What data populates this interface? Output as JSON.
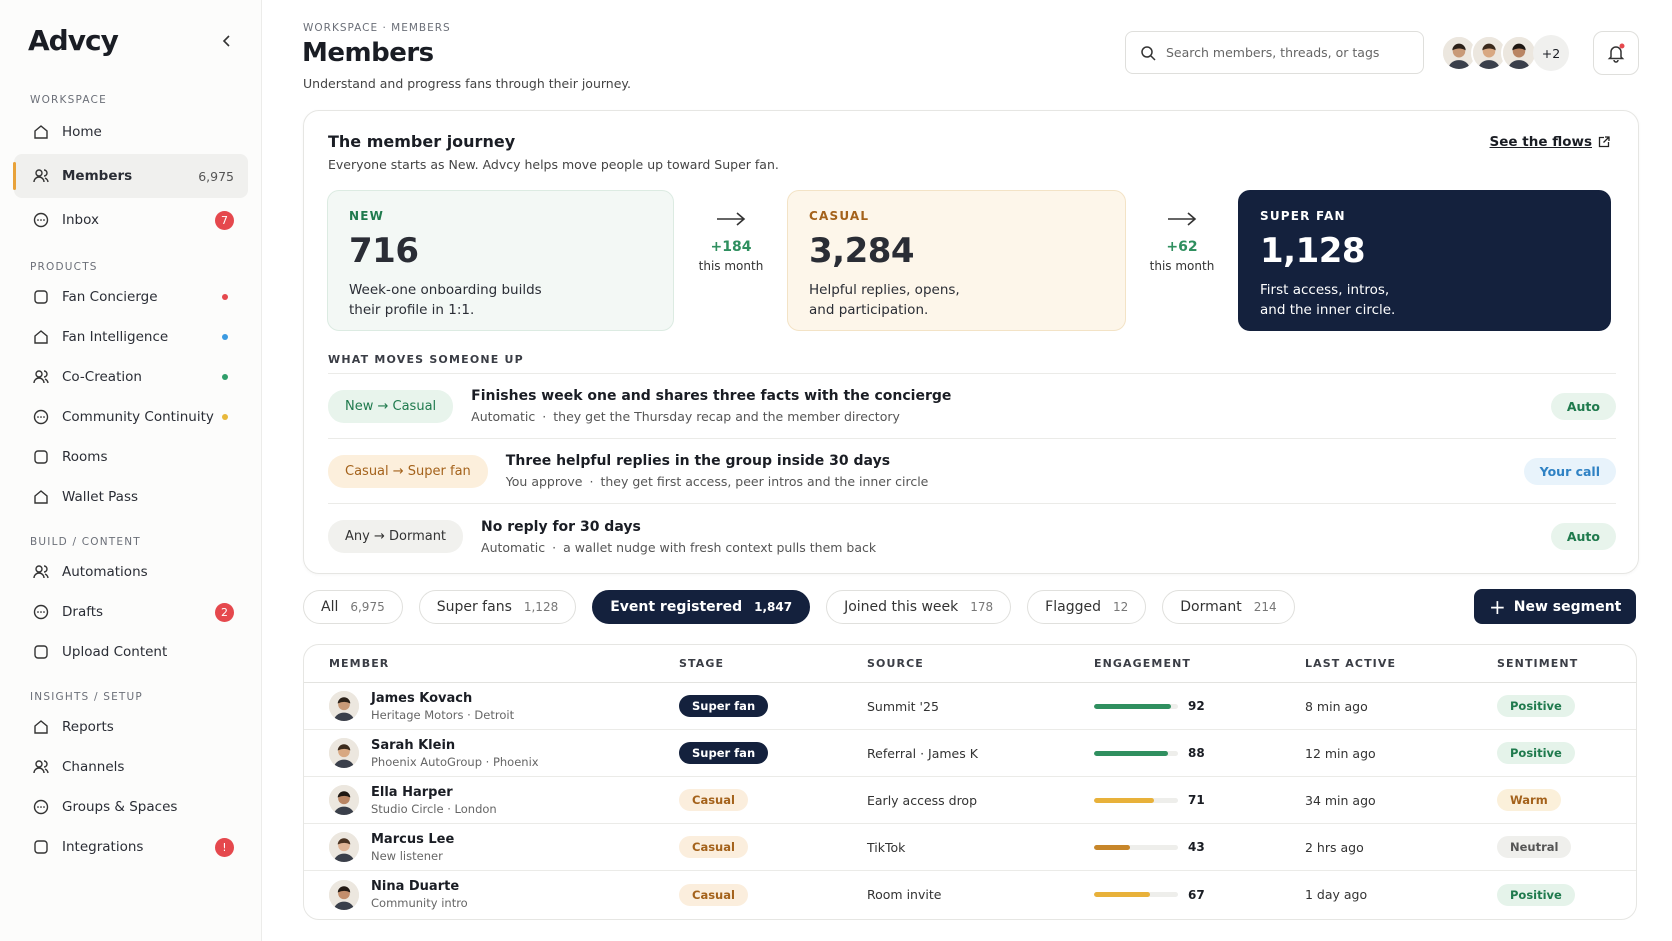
{
  "sidebar": {
    "logo": "Advcy",
    "sections": [
      {
        "title": "WORKSPACE",
        "items": [
          {
            "label": "Home"
          },
          {
            "label": "Members",
            "count": "6,975",
            "selected": true
          },
          {
            "label": "Inbox",
            "badge": "7"
          }
        ]
      },
      {
        "title": "PRODUCTS",
        "items": [
          {
            "label": "Fan Concierge",
            "dot": "#e5484d"
          },
          {
            "label": "Fan Intelligence",
            "dot": "#3b9ae1"
          },
          {
            "label": "Co-Creation",
            "dot": "#2f9e6a"
          },
          {
            "label": "Community Continuity",
            "dot": "#e8b83a"
          },
          {
            "label": "Rooms"
          },
          {
            "label": "Wallet Pass"
          }
        ]
      },
      {
        "title": "BUILD / CONTENT",
        "items": [
          {
            "label": "Automations"
          },
          {
            "label": "Drafts",
            "badge": "2"
          },
          {
            "label": "Upload Content"
          }
        ]
      },
      {
        "title": "INSIGHTS / SETUP",
        "items": [
          {
            "label": "Reports"
          },
          {
            "label": "Channels"
          },
          {
            "label": "Groups & Spaces"
          },
          {
            "label": "Integrations",
            "badge": "!"
          }
        ]
      }
    ]
  },
  "header": {
    "breadcrumb": "WORKSPACE · MEMBERS",
    "title": "Members",
    "subtitle": "Understand and progress fans through their journey.",
    "search_placeholder": "Search members, threads, or tags",
    "avatar_more": "+2"
  },
  "journey": {
    "title": "The member journey",
    "subtitle": "Everyone starts as New. Advcy helps move people up toward Super fan.",
    "link": "See the flows",
    "stages": [
      {
        "label": "NEW",
        "count": "716",
        "description": [
          "Week-one onboarding builds",
          "their profile in 1:1."
        ]
      },
      {
        "label": "CASUAL",
        "count": "3,284",
        "description": [
          "Helpful replies, opens,",
          "and participation."
        ]
      },
      {
        "label": "SUPER FAN",
        "count": "1,128",
        "description": [
          "First access, intros,",
          "and the inner circle."
        ]
      }
    ],
    "transitions": [
      {
        "delta": "+184",
        "period": "this month"
      },
      {
        "delta": "+62",
        "period": "this month"
      }
    ],
    "rules_title": "WHAT MOVES SOMEONE UP",
    "rules": [
      {
        "move": "New → Casual",
        "title": "Finishes week one and shares three facts with the concierge",
        "mode": "Automatic",
        "detail": "they get the Thursday recap and the member directory",
        "status": "Auto"
      },
      {
        "move": "Casual → Super fan",
        "title": "Three helpful replies in the group inside 30 days",
        "mode": "You approve",
        "detail": "they get first access, peer intros and the inner circle",
        "status": "Your call"
      },
      {
        "move": "Any → Dormant",
        "title": "No reply for 30 days",
        "mode": "Automatic",
        "detail": "a wallet nudge with fresh context pulls them back",
        "status": "Auto"
      }
    ]
  },
  "filters": [
    {
      "label": "All",
      "count": "6,975"
    },
    {
      "label": "Super fans",
      "count": "1,128"
    },
    {
      "label": "Event registered",
      "count": "1,847",
      "selected": true
    },
    {
      "label": "Joined this week",
      "count": "178"
    },
    {
      "label": "Flagged",
      "count": "12"
    },
    {
      "label": "Dormant",
      "count": "214"
    }
  ],
  "new_segment": "New segment",
  "table": {
    "columns": [
      "MEMBER",
      "STAGE",
      "SOURCE",
      "ENGAGEMENT",
      "LAST ACTIVE",
      "SENTIMENT"
    ],
    "rows": [
      {
        "name": "James Kovach",
        "org": "Heritage Motors · Detroit",
        "stage": "Super fan",
        "stage_bg": "#14213d",
        "stage_fg": "#ffffff",
        "source": "Summit '25",
        "engagement": 92,
        "bar_color": "#2f8f5f",
        "last_active": "8 min ago",
        "sentiment": "Positive",
        "sentiment_bg": "#e5f3ea",
        "sentiment_fg": "#1f7a4d"
      },
      {
        "name": "Sarah Klein",
        "org": "Phoenix AutoGroup · Phoenix",
        "stage": "Super fan",
        "stage_bg": "#14213d",
        "stage_fg": "#ffffff",
        "source": "Referral · James K",
        "engagement": 88,
        "bar_color": "#2f8f5f",
        "last_active": "12 min ago",
        "sentiment": "Positive",
        "sentiment_bg": "#e5f3ea",
        "sentiment_fg": "#1f7a4d"
      },
      {
        "name": "Ella Harper",
        "org": "Studio Circle · London",
        "stage": "Casual",
        "stage_bg": "#fbeedd",
        "stage_fg": "#a4621b",
        "source": "Early access drop",
        "engagement": 71,
        "bar_color": "#e8b13a",
        "last_active": "34 min ago",
        "sentiment": "Warm",
        "sentiment_bg": "#fbf0da",
        "sentiment_fg": "#a4621b"
      },
      {
        "name": "Marcus Lee",
        "org": "New listener",
        "stage": "Casual",
        "stage_bg": "#fbeedd",
        "stage_fg": "#a4621b",
        "source": "TikTok",
        "engagement": 43,
        "bar_color": "#c7862a",
        "last_active": "2 hrs ago",
        "sentiment": "Neutral",
        "sentiment_bg": "#efefec",
        "sentiment_fg": "#555555"
      },
      {
        "name": "Nina Duarte",
        "org": "Community intro",
        "stage": "Casual",
        "stage_bg": "#fbeedd",
        "stage_fg": "#a4621b",
        "source": "Room invite",
        "engagement": 67,
        "bar_color": "#e8b13a",
        "last_active": "1 day ago",
        "sentiment": "Positive",
        "sentiment_bg": "#e5f3ea",
        "sentiment_fg": "#1f7a4d"
      }
    ]
  }
}
